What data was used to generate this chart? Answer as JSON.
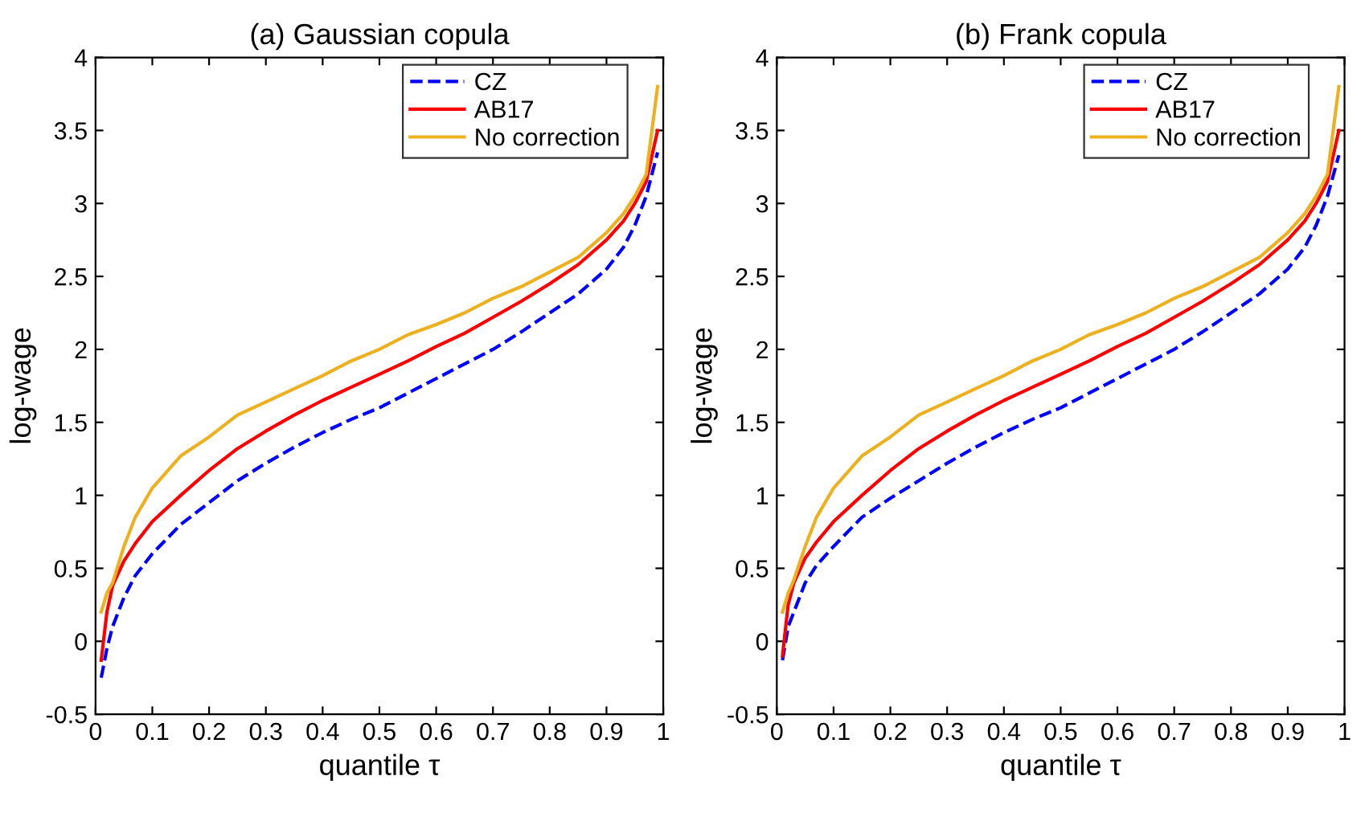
{
  "chart_data": [
    {
      "type": "line",
      "title": "(a) Gaussian copula",
      "xlabel": "quantile τ",
      "ylabel": "log-wage",
      "xlim": [
        0,
        1
      ],
      "ylim": [
        -0.5,
        4
      ],
      "xticks": [
        0,
        0.1,
        0.2,
        0.3,
        0.4,
        0.5,
        0.6,
        0.7,
        0.8,
        0.9,
        1
      ],
      "yticks": [
        -0.5,
        0,
        0.5,
        1,
        1.5,
        2,
        2.5,
        3,
        3.5,
        4
      ],
      "grid": false,
      "legend": "top right",
      "marker": "none",
      "x": [
        0.01,
        0.02,
        0.03,
        0.05,
        0.07,
        0.1,
        0.15,
        0.2,
        0.25,
        0.3,
        0.35,
        0.4,
        0.45,
        0.5,
        0.55,
        0.6,
        0.65,
        0.7,
        0.75,
        0.8,
        0.85,
        0.9,
        0.93,
        0.95,
        0.97,
        0.99
      ],
      "series": [
        {
          "name": "CZ",
          "color": "#0000ff",
          "line_style": "dashed",
          "values": [
            -0.25,
            -0.05,
            0.1,
            0.3,
            0.45,
            0.6,
            0.8,
            0.95,
            1.1,
            1.22,
            1.33,
            1.43,
            1.52,
            1.6,
            1.7,
            1.8,
            1.9,
            2.0,
            2.12,
            2.25,
            2.38,
            2.55,
            2.7,
            2.85,
            3.05,
            3.35
          ]
        },
        {
          "name": "AB17",
          "color": "#ff0000",
          "line_style": "solid",
          "values": [
            -0.13,
            0.2,
            0.38,
            0.55,
            0.67,
            0.82,
            1.0,
            1.17,
            1.32,
            1.44,
            1.55,
            1.65,
            1.74,
            1.83,
            1.92,
            2.02,
            2.11,
            2.22,
            2.33,
            2.45,
            2.58,
            2.75,
            2.88,
            3.0,
            3.15,
            3.5
          ]
        },
        {
          "name": "No correction",
          "color": "#edb120",
          "line_style": "solid",
          "values": [
            0.2,
            0.33,
            0.4,
            0.65,
            0.85,
            1.05,
            1.27,
            1.4,
            1.55,
            1.64,
            1.73,
            1.82,
            1.92,
            2.0,
            2.1,
            2.17,
            2.25,
            2.35,
            2.43,
            2.53,
            2.63,
            2.8,
            2.93,
            3.05,
            3.2,
            3.8
          ]
        }
      ]
    },
    {
      "type": "line",
      "title": "(b) Frank copula",
      "xlabel": "quantile τ",
      "ylabel": "log-wage",
      "xlim": [
        0,
        1
      ],
      "ylim": [
        -0.5,
        4
      ],
      "xticks": [
        0,
        0.1,
        0.2,
        0.3,
        0.4,
        0.5,
        0.6,
        0.7,
        0.8,
        0.9,
        1
      ],
      "yticks": [
        -0.5,
        0,
        0.5,
        1,
        1.5,
        2,
        2.5,
        3,
        3.5,
        4
      ],
      "grid": false,
      "legend": "top right",
      "marker": "none",
      "x": [
        0.01,
        0.02,
        0.03,
        0.05,
        0.07,
        0.1,
        0.15,
        0.2,
        0.25,
        0.3,
        0.35,
        0.4,
        0.45,
        0.5,
        0.55,
        0.6,
        0.65,
        0.7,
        0.75,
        0.8,
        0.85,
        0.9,
        0.93,
        0.95,
        0.97,
        0.99
      ],
      "series": [
        {
          "name": "CZ",
          "color": "#0000ff",
          "line_style": "dashed",
          "values": [
            -0.13,
            0.1,
            0.2,
            0.4,
            0.52,
            0.65,
            0.85,
            0.98,
            1.1,
            1.22,
            1.33,
            1.43,
            1.52,
            1.6,
            1.7,
            1.8,
            1.9,
            2.0,
            2.12,
            2.25,
            2.38,
            2.55,
            2.7,
            2.85,
            3.05,
            3.33
          ]
        },
        {
          "name": "AB17",
          "color": "#ff0000",
          "line_style": "solid",
          "values": [
            -0.1,
            0.25,
            0.4,
            0.57,
            0.68,
            0.82,
            1.0,
            1.17,
            1.32,
            1.44,
            1.55,
            1.65,
            1.74,
            1.83,
            1.92,
            2.02,
            2.11,
            2.22,
            2.33,
            2.45,
            2.58,
            2.75,
            2.88,
            3.0,
            3.15,
            3.5
          ]
        },
        {
          "name": "No correction",
          "color": "#edb120",
          "line_style": "solid",
          "values": [
            0.2,
            0.33,
            0.42,
            0.65,
            0.85,
            1.05,
            1.27,
            1.4,
            1.55,
            1.64,
            1.73,
            1.82,
            1.92,
            2.0,
            2.1,
            2.17,
            2.25,
            2.35,
            2.43,
            2.53,
            2.63,
            2.8,
            2.93,
            3.05,
            3.2,
            3.8
          ]
        }
      ]
    }
  ]
}
